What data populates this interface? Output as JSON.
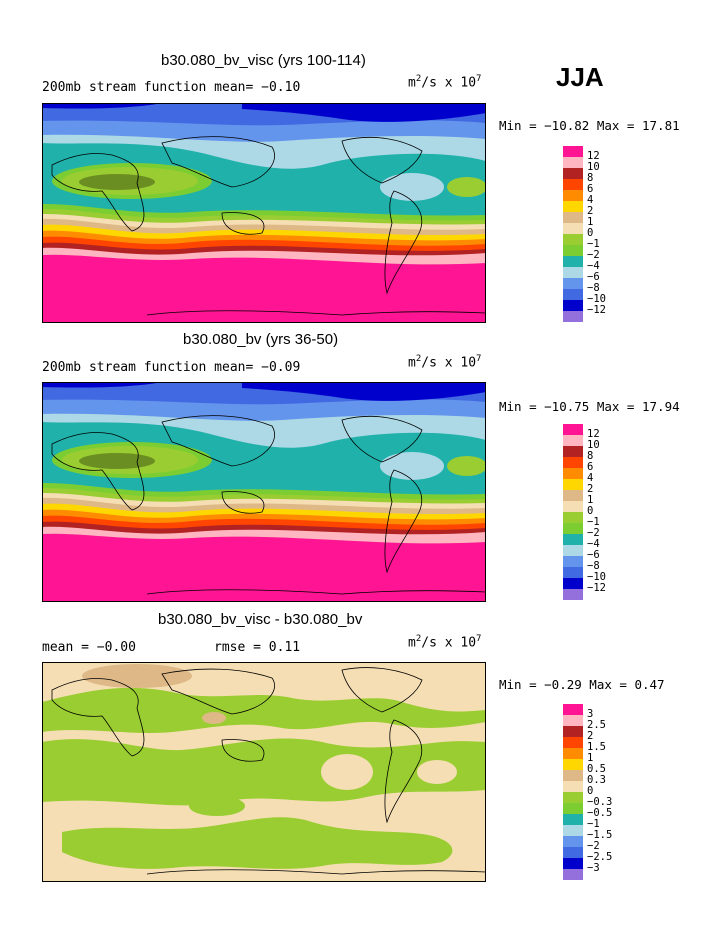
{
  "season": "JJA",
  "panels": [
    {
      "title": "b30.080_bv_visc (yrs 100-114)",
      "left_label": "200mb stream function  mean=  −0.10",
      "unit_base": "m",
      "unit_sup1": "2",
      "unit_mid": "/s x 10",
      "unit_sup2": "7",
      "minmax": "Min = −10.82 Max =  17.81",
      "colorbar": {
        "labels": [
          "12",
          "10",
          "8",
          "6",
          "4",
          "2",
          "1",
          "0",
          "−1",
          "−2",
          "−4",
          "−6",
          "−8",
          "−10",
          "−12"
        ],
        "colors": [
          "#ff1493",
          "#ffb6c1",
          "#b22222",
          "#ff4500",
          "#ff8c00",
          "#ffd700",
          "#deb887",
          "#f5deb3",
          "#9acd32",
          "#7ccd32",
          "#20b2aa",
          "#add8e6",
          "#6495ed",
          "#4169e1",
          "#0000cd",
          "#9370db"
        ]
      }
    },
    {
      "title": "b30.080_bv (yrs 36-50)",
      "left_label": "200mb stream function  mean=  −0.09",
      "unit_base": "m",
      "unit_sup1": "2",
      "unit_mid": "/s x 10",
      "unit_sup2": "7",
      "minmax": "Min = −10.75 Max =  17.94",
      "colorbar": {
        "labels": [
          "12",
          "10",
          "8",
          "6",
          "4",
          "2",
          "1",
          "0",
          "−1",
          "−2",
          "−4",
          "−6",
          "−8",
          "−10",
          "−12"
        ],
        "colors": [
          "#ff1493",
          "#ffb6c1",
          "#b22222",
          "#ff4500",
          "#ff8c00",
          "#ffd700",
          "#deb887",
          "#f5deb3",
          "#9acd32",
          "#7ccd32",
          "#20b2aa",
          "#add8e6",
          "#6495ed",
          "#4169e1",
          "#0000cd",
          "#9370db"
        ]
      }
    },
    {
      "title": "b30.080_bv_visc - b30.080_bv",
      "left_label": "mean =  −0.00",
      "mid_label": "rmse =   0.11",
      "unit_base": "m",
      "unit_sup1": "2",
      "unit_mid": "/s x 10",
      "unit_sup2": "7",
      "minmax": "Min =  −0.29 Max =   0.47",
      "colorbar": {
        "labels": [
          "3",
          "2.5",
          "2",
          "1.5",
          "1",
          "0.5",
          "0.3",
          "0",
          "−0.3",
          "−0.5",
          "−1",
          "−1.5",
          "−2",
          "−2.5",
          "−3"
        ],
        "colors": [
          "#ff1493",
          "#ffb6c1",
          "#b22222",
          "#ff4500",
          "#ff8c00",
          "#ffd700",
          "#deb887",
          "#f5deb3",
          "#9acd32",
          "#7ccd32",
          "#20b2aa",
          "#add8e6",
          "#6495ed",
          "#4169e1",
          "#0000cd",
          "#9370db"
        ]
      }
    }
  ],
  "chart_data": [
    {
      "type": "heatmap",
      "title": "b30.080_bv_visc (yrs 100-114)",
      "variable": "200mb stream function",
      "mean": -0.1,
      "min": -10.82,
      "max": 17.81,
      "units": "m2/s x 10^7",
      "contour_levels": [
        -12,
        -10,
        -8,
        -6,
        -4,
        -2,
        -1,
        0,
        1,
        2,
        4,
        6,
        8,
        10,
        12
      ],
      "zonal_pattern_north_to_south": [
        -12,
        -10,
        -8,
        -6,
        -4,
        -2,
        -1,
        0,
        1,
        2,
        4,
        6,
        8,
        10,
        12
      ]
    },
    {
      "type": "heatmap",
      "title": "b30.080_bv (yrs 36-50)",
      "variable": "200mb stream function",
      "mean": -0.09,
      "min": -10.75,
      "max": 17.94,
      "units": "m2/s x 10^7",
      "contour_levels": [
        -12,
        -10,
        -8,
        -6,
        -4,
        -2,
        -1,
        0,
        1,
        2,
        4,
        6,
        8,
        10,
        12
      ],
      "zonal_pattern_north_to_south": [
        -12,
        -10,
        -8,
        -6,
        -4,
        -2,
        -1,
        0,
        1,
        2,
        4,
        6,
        8,
        10,
        12
      ]
    },
    {
      "type": "heatmap",
      "title": "b30.080_bv_visc - b30.080_bv",
      "mean": -0.0,
      "rmse": 0.11,
      "min": -0.29,
      "max": 0.47,
      "units": "m2/s x 10^7",
      "contour_levels": [
        -3,
        -2.5,
        -2,
        -1.5,
        -1,
        -0.5,
        -0.3,
        0,
        0.3,
        0.5,
        1,
        1.5,
        2,
        2.5,
        3
      ]
    }
  ]
}
